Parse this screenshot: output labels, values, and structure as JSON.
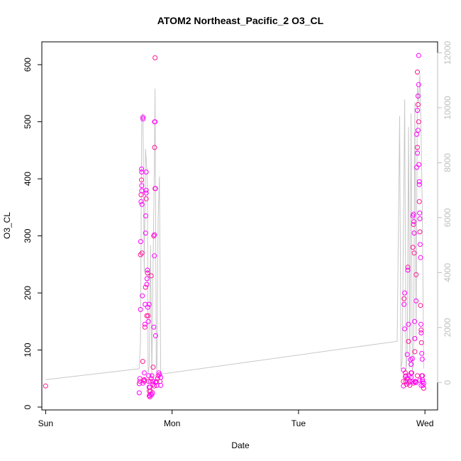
{
  "chart_data": {
    "type": "scatter",
    "title": "ATOM2 Northeast_Pacific_2 O3_CL",
    "xlabel": "Date",
    "ylabel": "O3_CL",
    "x_ticks": [
      "Sun",
      "Mon",
      "Tue",
      "Wed"
    ],
    "x_tick_values": [
      0,
      1,
      2,
      3
    ],
    "xlim": [
      -0.03,
      3.1
    ],
    "ylim": [
      -5,
      640
    ],
    "y_ticks": [
      0,
      100,
      200,
      300,
      400,
      500,
      600
    ],
    "y2_ticks": [
      0,
      2000,
      4000,
      6000,
      8000,
      10000,
      12000
    ],
    "y2lim": [
      -1000,
      12400
    ],
    "grid": false,
    "colors": {
      "points": "#ff00ff",
      "points_dense": "#ff1493",
      "line": "#c8c8c8",
      "right_axis": "#bfbfbf",
      "axes": "#000000"
    },
    "series": [
      {
        "values_axis": "left",
        "points": [
          [
            0.0,
            37
          ],
          [
            0.74,
            25
          ],
          [
            0.74,
            41
          ],
          [
            0.745,
            45
          ],
          [
            0.745,
            50
          ],
          [
            0.75,
            171
          ],
          [
            0.75,
            267
          ],
          [
            0.752,
            290
          ],
          [
            0.755,
            360
          ],
          [
            0.755,
            372
          ],
          [
            0.76,
            379
          ],
          [
            0.76,
            388
          ],
          [
            0.758,
            398
          ],
          [
            0.758,
            417
          ],
          [
            0.76,
            412
          ],
          [
            0.762,
            270
          ],
          [
            0.762,
            355
          ],
          [
            0.765,
            195
          ],
          [
            0.768,
            80
          ],
          [
            0.77,
            42
          ],
          [
            0.775,
            47
          ],
          [
            0.78,
            48
          ],
          [
            0.78,
            60
          ],
          [
            0.78,
            45
          ],
          [
            0.785,
            140
          ],
          [
            0.785,
            145
          ],
          [
            0.787,
            180
          ],
          [
            0.79,
            210
          ],
          [
            0.79,
            305
          ],
          [
            0.792,
            335
          ],
          [
            0.795,
            365
          ],
          [
            0.795,
            375
          ],
          [
            0.795,
            380
          ],
          [
            0.8,
            160
          ],
          [
            0.8,
            215
          ],
          [
            0.802,
            225
          ],
          [
            0.805,
            235
          ],
          [
            0.805,
            240
          ],
          [
            0.808,
            175
          ],
          [
            0.81,
            160
          ],
          [
            0.812,
            150
          ],
          [
            0.815,
            55
          ],
          [
            0.815,
            45
          ],
          [
            0.818,
            35
          ],
          [
            0.82,
            20
          ],
          [
            0.82,
            28
          ],
          [
            0.825,
            35
          ],
          [
            0.83,
            45
          ],
          [
            0.835,
            50
          ],
          [
            0.84,
            55
          ],
          [
            0.845,
            25
          ],
          [
            0.85,
            70
          ],
          [
            0.85,
            45
          ],
          [
            0.855,
            140
          ],
          [
            0.855,
            300
          ],
          [
            0.86,
            265
          ],
          [
            0.86,
            302
          ],
          [
            0.862,
            455
          ],
          [
            0.862,
            500
          ],
          [
            0.865,
            500
          ],
          [
            0.865,
            383
          ],
          [
            0.868,
            383
          ],
          [
            0.87,
            125
          ],
          [
            0.875,
            45
          ],
          [
            0.88,
            38
          ],
          [
            0.885,
            50
          ],
          [
            0.89,
            55
          ],
          [
            0.895,
            60
          ],
          [
            0.9,
            57
          ],
          [
            0.905,
            45
          ],
          [
            0.91,
            38
          ],
          [
            0.91,
            52
          ],
          [
            0.865,
            612
          ],
          [
            0.795,
            412
          ],
          [
            0.818,
            180
          ],
          [
            0.835,
            230
          ],
          [
            0.77,
            508
          ],
          [
            0.77,
            505
          ],
          [
            0.82,
            20
          ],
          [
            0.825,
            18
          ],
          [
            0.83,
            22
          ],
          [
            0.83,
            28
          ],
          [
            0.84,
            22
          ],
          [
            0.85,
            40
          ],
          [
            0.86,
            37
          ],
          [
            0.87,
            43
          ],
          [
            2.83,
            65
          ],
          [
            2.83,
            45
          ],
          [
            2.83,
            37
          ],
          [
            2.835,
            180
          ],
          [
            2.835,
            190
          ],
          [
            2.84,
            200
          ],
          [
            2.84,
            137
          ],
          [
            2.845,
            53
          ],
          [
            2.85,
            45
          ],
          [
            2.85,
            55
          ],
          [
            2.855,
            40
          ],
          [
            2.86,
            92
          ],
          [
            2.86,
            50
          ],
          [
            2.865,
            245
          ],
          [
            2.865,
            240
          ],
          [
            2.87,
            145
          ],
          [
            2.87,
            115
          ],
          [
            2.875,
            55
          ],
          [
            2.88,
            45
          ],
          [
            2.88,
            38
          ],
          [
            2.885,
            83
          ],
          [
            2.89,
            75
          ],
          [
            2.89,
            60
          ],
          [
            2.895,
            60
          ],
          [
            2.9,
            85
          ],
          [
            2.905,
            280
          ],
          [
            2.905,
            335
          ],
          [
            2.91,
            338
          ],
          [
            2.91,
            320
          ],
          [
            2.912,
            325
          ],
          [
            2.915,
            305
          ],
          [
            2.915,
            270
          ],
          [
            2.918,
            150
          ],
          [
            2.92,
            120
          ],
          [
            2.92,
            97
          ],
          [
            2.925,
            45
          ],
          [
            2.93,
            186
          ],
          [
            2.93,
            232
          ],
          [
            2.935,
            420
          ],
          [
            2.935,
            478
          ],
          [
            2.94,
            455
          ],
          [
            2.94,
            445
          ],
          [
            2.94,
            520
          ],
          [
            2.945,
            530
          ],
          [
            2.945,
            545
          ],
          [
            2.95,
            565
          ],
          [
            2.95,
            500
          ],
          [
            2.952,
            425
          ],
          [
            2.955,
            390
          ],
          [
            2.955,
            360
          ],
          [
            2.958,
            340
          ],
          [
            2.96,
            330
          ],
          [
            2.96,
            307
          ],
          [
            2.962,
            285
          ],
          [
            2.965,
            262
          ],
          [
            2.965,
            178
          ],
          [
            2.968,
            145
          ],
          [
            2.97,
            130
          ],
          [
            2.972,
            113
          ],
          [
            2.975,
            94
          ],
          [
            2.978,
            84
          ],
          [
            2.98,
            55
          ],
          [
            2.98,
            45
          ],
          [
            2.985,
            38
          ],
          [
            2.99,
            33
          ],
          [
            2.99,
            42
          ],
          [
            2.95,
            616
          ],
          [
            2.94,
            587
          ],
          [
            2.945,
            485
          ],
          [
            2.955,
            395
          ],
          [
            2.97,
            135
          ],
          [
            2.975,
            55
          ],
          [
            2.98,
            48
          ],
          [
            2.85,
            45
          ],
          [
            2.86,
            50
          ],
          [
            2.87,
            42
          ],
          [
            2.88,
            46
          ],
          [
            2.89,
            52
          ],
          [
            2.9,
            45
          ],
          [
            2.91,
            42
          ],
          [
            2.92,
            44
          ],
          [
            2.93,
            43
          ],
          [
            2.94,
            55
          ],
          [
            2.96,
            47
          ],
          [
            2.97,
            38
          ],
          [
            2.845,
            60
          ]
        ]
      },
      {
        "values_axis": "right",
        "points": [
          [
            0.0,
            100
          ],
          [
            0.74,
            500
          ],
          [
            0.75,
            1500
          ],
          [
            0.76,
            9500
          ],
          [
            0.77,
            9800
          ],
          [
            0.78,
            4000
          ],
          [
            0.79,
            8500
          ],
          [
            0.8,
            7800
          ],
          [
            0.805,
            7000
          ],
          [
            0.81,
            300
          ],
          [
            0.82,
            600
          ],
          [
            0.83,
            5000
          ],
          [
            0.84,
            200
          ],
          [
            0.85,
            4500
          ],
          [
            0.86,
            8000
          ],
          [
            0.865,
            10700
          ],
          [
            0.87,
            6500
          ],
          [
            0.875,
            700
          ],
          [
            0.88,
            400
          ],
          [
            0.89,
            6000
          ],
          [
            0.9,
            7500
          ],
          [
            0.91,
            300
          ],
          [
            2.78,
            1500
          ],
          [
            2.8,
            9700
          ],
          [
            2.81,
            500
          ],
          [
            2.82,
            800
          ],
          [
            2.84,
            10300
          ],
          [
            2.85,
            400
          ],
          [
            2.86,
            1000
          ],
          [
            2.87,
            9300
          ],
          [
            2.88,
            500
          ],
          [
            2.89,
            9800
          ],
          [
            2.9,
            400
          ],
          [
            2.91,
            700
          ],
          [
            2.92,
            10200
          ],
          [
            2.93,
            1500
          ],
          [
            2.94,
            10800
          ],
          [
            2.95,
            10200
          ],
          [
            2.96,
            11200
          ],
          [
            2.97,
            9000
          ],
          [
            2.98,
            6000
          ],
          [
            2.99,
            500
          ]
        ]
      }
    ]
  }
}
